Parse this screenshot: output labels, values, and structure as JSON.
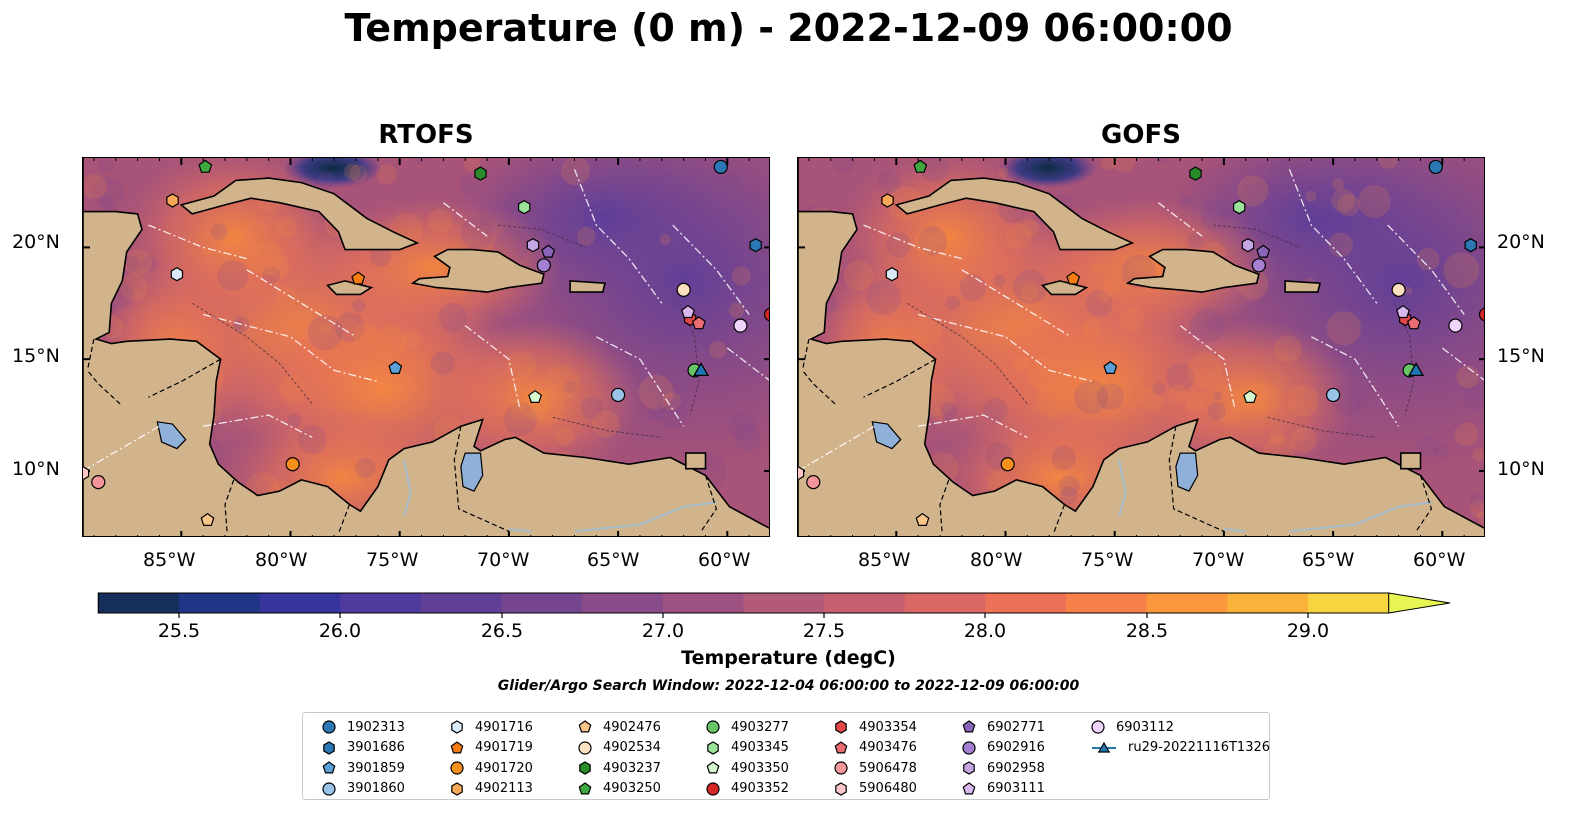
{
  "figure": {
    "title": "Temperature (0 m) - 2022-12-09 06:00:00",
    "panels": [
      {
        "title": "RTOFS"
      },
      {
        "title": "GOFS"
      }
    ],
    "x_ticks": [
      "85°W",
      "80°W",
      "75°W",
      "70°W",
      "65°W",
      "60°W"
    ],
    "y_ticks": [
      "20°N",
      "15°N",
      "10°N"
    ],
    "colorbar": {
      "label": "Temperature (degC)",
      "ticks": [
        "25.5",
        "26.0",
        "26.5",
        "27.0",
        "27.5",
        "28.0",
        "28.5",
        "29.0"
      ],
      "min": 25.25,
      "max": 29.25,
      "colors": [
        "#0b2a40",
        "#152e5c",
        "#213586",
        "#36359e",
        "#4f3a9d",
        "#623f96",
        "#764590",
        "#894b89",
        "#9d5180",
        "#b25a77",
        "#c6606e",
        "#d96764",
        "#ec7156",
        "#f88149",
        "#fb983e",
        "#fbb23a",
        "#f7d540",
        "#e7f552"
      ],
      "extend": "both"
    },
    "search_window": "Glider/Argo Search Window: 2022-12-04 06:00:00 to 2022-12-09 06:00:00",
    "legend": [
      {
        "label": "1902313",
        "marker": "circle",
        "color": "#2b78b4"
      },
      {
        "label": "3901686",
        "marker": "hexagon",
        "color": "#2b78b4"
      },
      {
        "label": "3901859",
        "marker": "pentagon",
        "color": "#5aa0d6"
      },
      {
        "label": "3901860",
        "marker": "circle",
        "color": "#9ac3e8"
      },
      {
        "label": "4901716",
        "marker": "hexagon",
        "color": "#dbeaf8"
      },
      {
        "label": "4901719",
        "marker": "pentagon",
        "color": "#f57b12"
      },
      {
        "label": "4901720",
        "marker": "circle",
        "color": "#f7901e"
      },
      {
        "label": "4902113",
        "marker": "hexagon",
        "color": "#f9a857"
      },
      {
        "label": "4902476",
        "marker": "pentagon",
        "color": "#fbc58a"
      },
      {
        "label": "4902534",
        "marker": "circle",
        "color": "#fde0c0"
      },
      {
        "label": "4903237",
        "marker": "hexagon",
        "color": "#2a8b2a"
      },
      {
        "label": "4903250",
        "marker": "pentagon",
        "color": "#3fa83f"
      },
      {
        "label": "4903277",
        "marker": "circle",
        "color": "#67c467"
      },
      {
        "label": "4903345",
        "marker": "hexagon",
        "color": "#9be39b"
      },
      {
        "label": "4903350",
        "marker": "pentagon",
        "color": "#d6f8d0"
      },
      {
        "label": "4903352",
        "marker": "circle",
        "color": "#d62728"
      },
      {
        "label": "4903354",
        "marker": "hexagon",
        "color": "#e2474b"
      },
      {
        "label": "4903476",
        "marker": "pentagon",
        "color": "#ec6d72"
      },
      {
        "label": "5906478",
        "marker": "circle",
        "color": "#f5969a"
      },
      {
        "label": "5906480",
        "marker": "hexagon",
        "color": "#fcc6c6"
      },
      {
        "label": "6902771",
        "marker": "pentagon",
        "color": "#8a64b8"
      },
      {
        "label": "6902916",
        "marker": "circle",
        "color": "#a57fd2"
      },
      {
        "label": "6902958",
        "marker": "hexagon",
        "color": "#c5a6e4"
      },
      {
        "label": "6903111",
        "marker": "pentagon",
        "color": "#d9b8f0"
      },
      {
        "label": "6903112",
        "marker": "circle",
        "color": "#efd5fb"
      },
      {
        "label": "ru29-20221116T1326",
        "marker": "triangle-line",
        "color": "#1f77b4"
      }
    ],
    "map_extent": {
      "lon": [
        -89.5,
        -58.0
      ],
      "lat": [
        7.0,
        24.0
      ]
    },
    "land_color": "#d1b48c",
    "water_line_color": "#a7bccb",
    "glider": {
      "label": "ru29-20221116T1326",
      "lon": -61.2,
      "lat": 14.5
    },
    "floats": [
      {
        "id": "1902313",
        "lon": -60.3,
        "lat": 23.6
      },
      {
        "id": "3901686",
        "lon": -58.7,
        "lat": 20.1
      },
      {
        "id": "3901859",
        "lon": -75.2,
        "lat": 14.6
      },
      {
        "id": "3901860",
        "lon": -65.0,
        "lat": 13.4
      },
      {
        "id": "4901716",
        "lon": -85.2,
        "lat": 18.8
      },
      {
        "id": "4901719",
        "lon": -76.9,
        "lat": 18.6
      },
      {
        "id": "4901720",
        "lon": -79.9,
        "lat": 10.3
      },
      {
        "id": "4902113",
        "lon": -85.4,
        "lat": 22.1
      },
      {
        "id": "4902476",
        "lon": -83.8,
        "lat": 7.8
      },
      {
        "id": "4902534",
        "lon": -62.0,
        "lat": 18.1
      },
      {
        "id": "4903237",
        "lon": -71.3,
        "lat": 23.3
      },
      {
        "id": "4903250",
        "lon": -83.9,
        "lat": 23.6
      },
      {
        "id": "4903277",
        "lon": -61.5,
        "lat": 14.5
      },
      {
        "id": "4903345",
        "lon": -69.3,
        "lat": 21.8
      },
      {
        "id": "4903350",
        "lon": -68.8,
        "lat": 13.3
      },
      {
        "id": "4903352",
        "lon": -58.0,
        "lat": 17.0
      },
      {
        "id": "4903354",
        "lon": -61.7,
        "lat": 16.8
      },
      {
        "id": "4903476",
        "lon": -61.3,
        "lat": 16.6
      },
      {
        "id": "5906478",
        "lon": -88.8,
        "lat": 9.5
      },
      {
        "id": "5906480",
        "lon": -89.5,
        "lat": 9.9
      },
      {
        "id": "6902771",
        "lon": -68.2,
        "lat": 19.8
      },
      {
        "id": "6902916",
        "lon": -68.4,
        "lat": 19.2
      },
      {
        "id": "6902958",
        "lon": -68.9,
        "lat": 20.1
      },
      {
        "id": "6903111",
        "lon": -61.8,
        "lat": 17.1
      },
      {
        "id": "6903112",
        "lon": -59.4,
        "lat": 16.5
      }
    ]
  }
}
